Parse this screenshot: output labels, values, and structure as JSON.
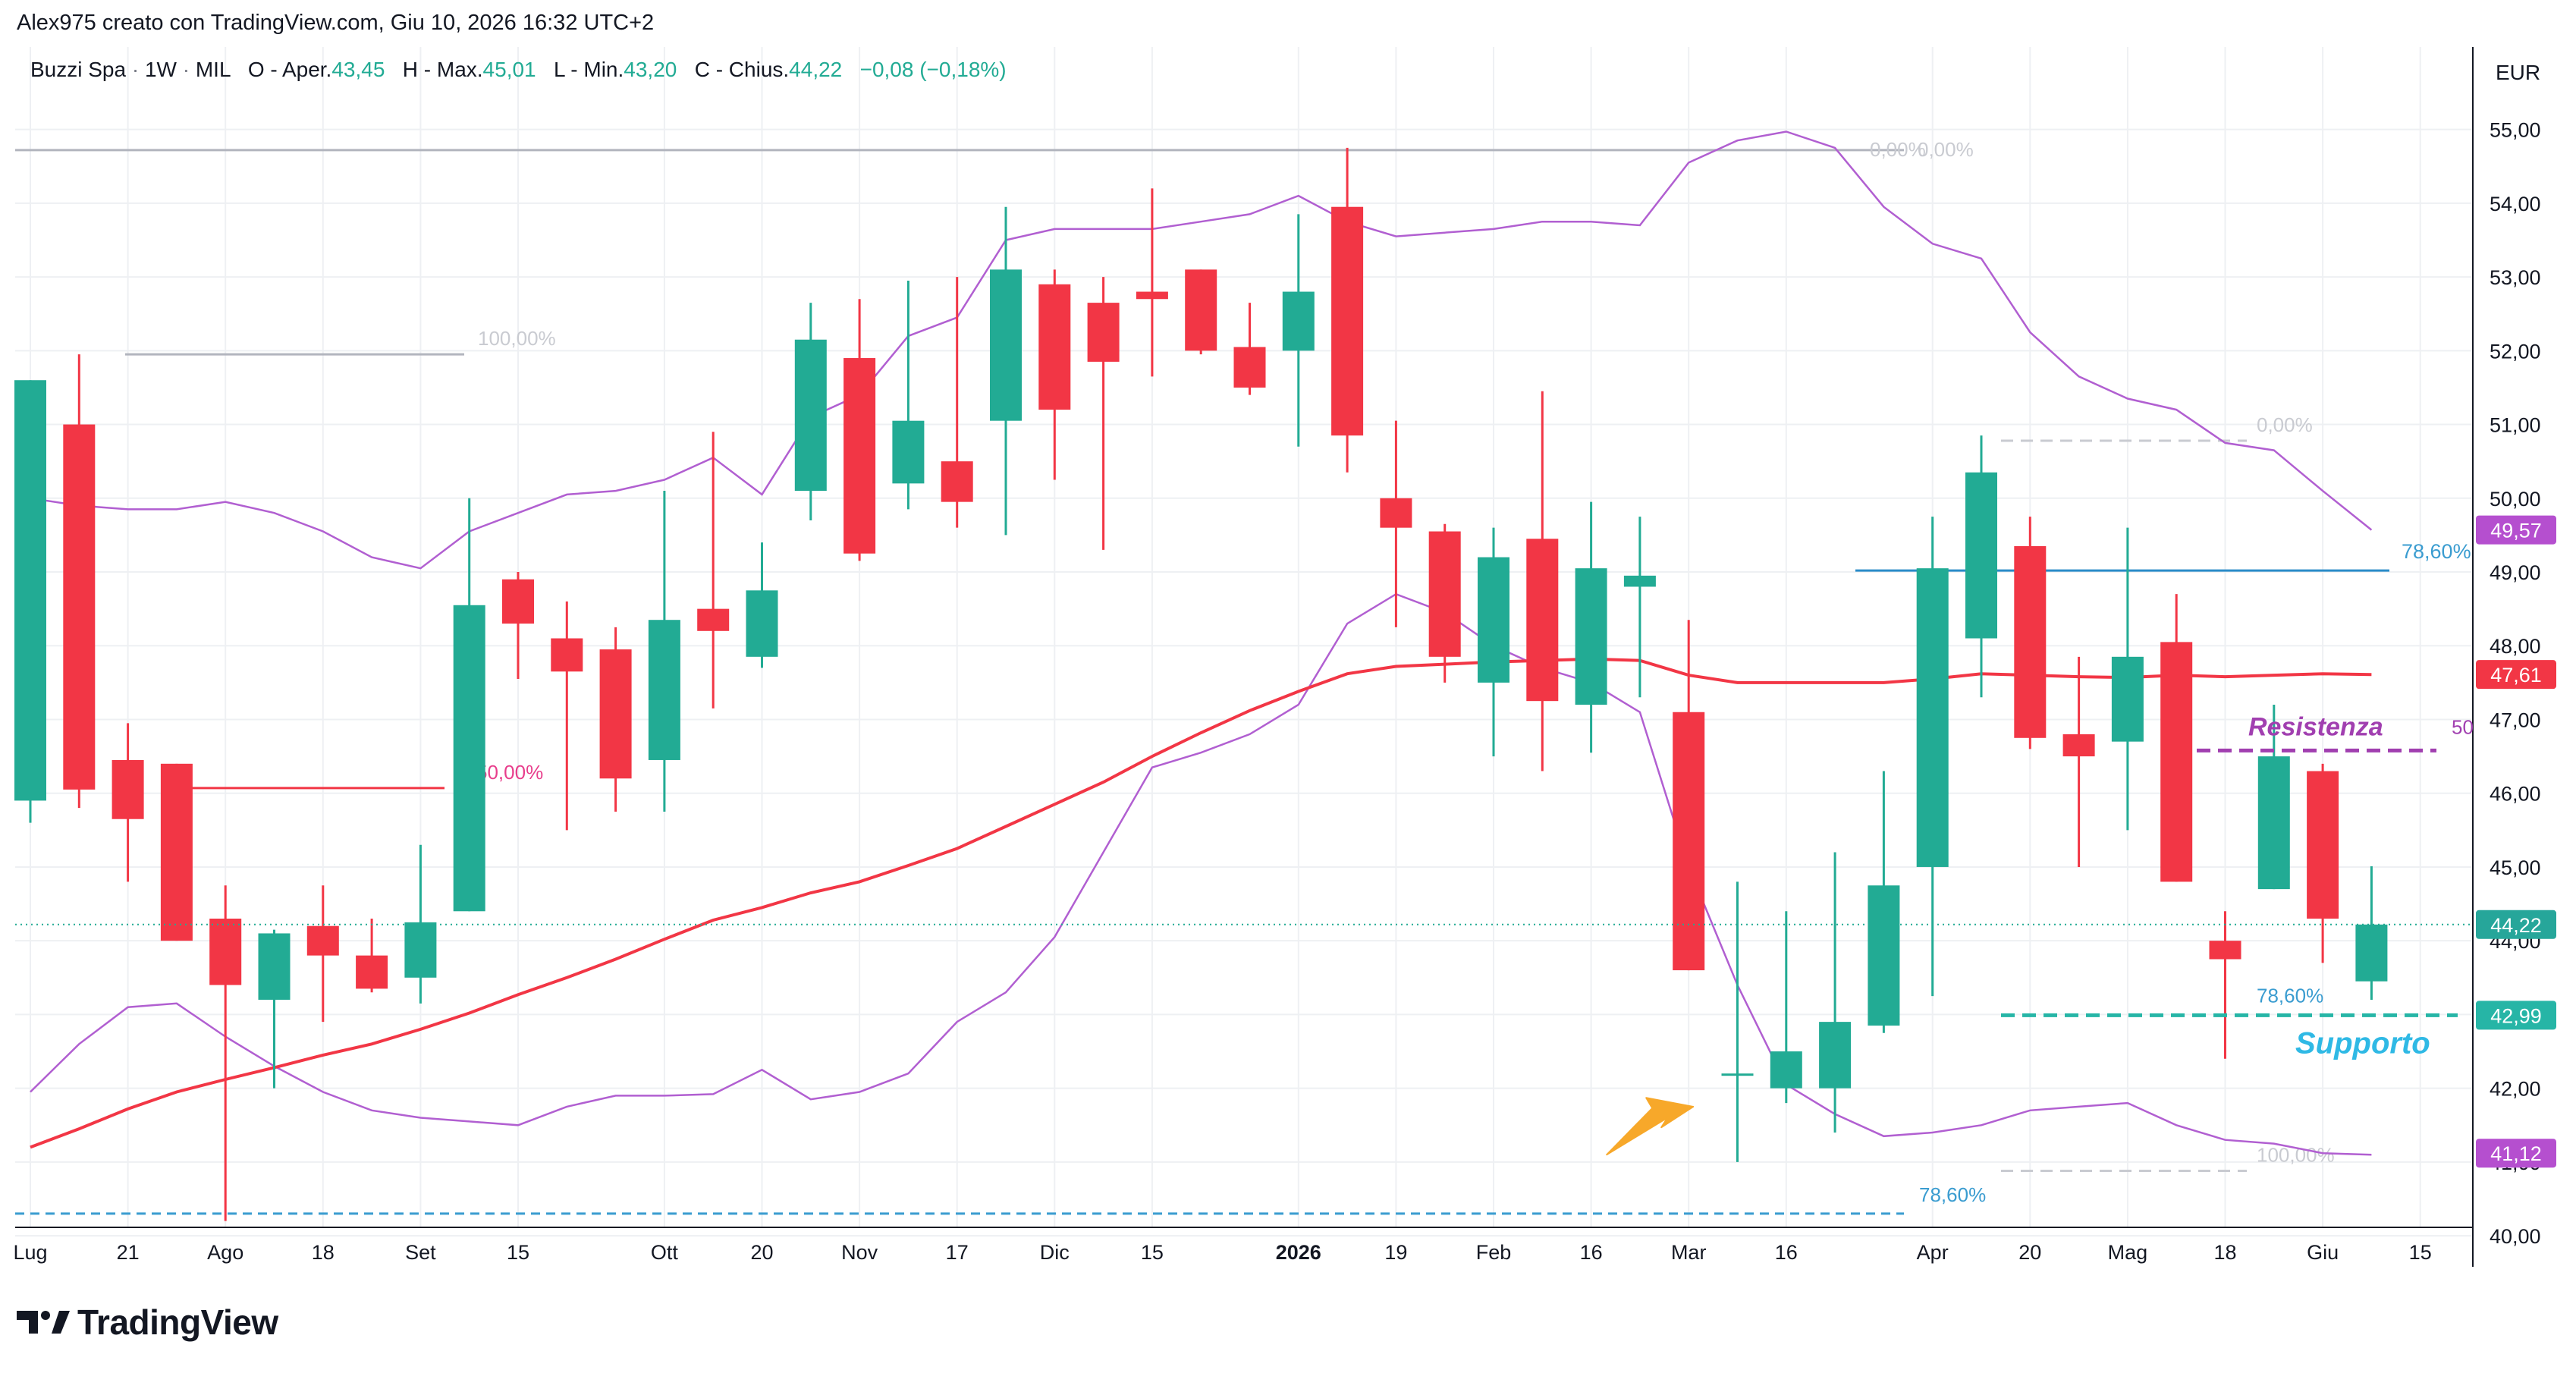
{
  "header": {
    "attribution": "Alex975 creato con TradingView.com, Giu 10, 2026 16:32 UTC+2"
  },
  "legend": {
    "symbol": "Buzzi Spa",
    "interval": "1W",
    "exchange": "MIL",
    "open_label": "O - Aper.",
    "open_value": "43,45",
    "high_label": "H - Max.",
    "high_value": "45,01",
    "low_label": "L - Min.",
    "low_value": "43,20",
    "close_label": "C - Chius.",
    "close_value": "44,22",
    "change": "−0,08 (−0,18%)"
  },
  "currency": "EUR",
  "footer": {
    "brand": "TradingView"
  },
  "colors": {
    "up": "#22ab94",
    "down": "#f23645",
    "ma": "#f23645",
    "bollinger": "#b15fd1",
    "grid": "#eef0f3",
    "fib_blue": "#3a9cd0",
    "support": "#26b5a6",
    "resistance": "#a13fb0"
  },
  "chart_data": {
    "type": "candlestick",
    "ylim": [
      39.6,
      55.5
    ],
    "y_ticks": [
      "40,00",
      "41,00",
      "42,00",
      "43,00",
      "44,00",
      "45,00",
      "46,00",
      "47,00",
      "48,00",
      "49,00",
      "50,00",
      "51,00",
      "52,00",
      "53,00",
      "54,00",
      "55,00"
    ],
    "x_ticks": [
      {
        "i": 0,
        "label": "Lug"
      },
      {
        "i": 2,
        "label": "21"
      },
      {
        "i": 4,
        "label": "Ago"
      },
      {
        "i": 6,
        "label": "18"
      },
      {
        "i": 8,
        "label": "Set"
      },
      {
        "i": 10,
        "label": "15"
      },
      {
        "i": 13,
        "label": "Ott"
      },
      {
        "i": 15,
        "label": "20"
      },
      {
        "i": 17,
        "label": "Nov"
      },
      {
        "i": 19,
        "label": "17"
      },
      {
        "i": 21,
        "label": "Dic"
      },
      {
        "i": 23,
        "label": "15"
      },
      {
        "i": 26,
        "label": "2026"
      },
      {
        "i": 28,
        "label": "19"
      },
      {
        "i": 30,
        "label": "Feb"
      },
      {
        "i": 32,
        "label": "16"
      },
      {
        "i": 34,
        "label": "Mar"
      },
      {
        "i": 36,
        "label": "16"
      },
      {
        "i": 39,
        "label": "Apr"
      },
      {
        "i": 41,
        "label": "20"
      },
      {
        "i": 43,
        "label": "Mag"
      },
      {
        "i": 45,
        "label": "18"
      },
      {
        "i": 47,
        "label": "Giu"
      },
      {
        "i": 49,
        "label": "15"
      }
    ],
    "candles": [
      {
        "o": 45.9,
        "h": 51.6,
        "l": 45.6,
        "c": 51.6
      },
      {
        "o": 51.0,
        "h": 51.95,
        "l": 45.8,
        "c": 46.05
      },
      {
        "o": 46.45,
        "h": 46.95,
        "l": 44.8,
        "c": 45.65
      },
      {
        "o": 46.4,
        "h": 46.4,
        "l": 44.0,
        "c": 44.0
      },
      {
        "o": 44.3,
        "h": 44.75,
        "l": 40.2,
        "c": 43.4
      },
      {
        "o": 43.2,
        "h": 44.15,
        "l": 42.0,
        "c": 44.1
      },
      {
        "o": 44.2,
        "h": 44.75,
        "l": 42.9,
        "c": 43.8
      },
      {
        "o": 43.8,
        "h": 44.3,
        "l": 43.3,
        "c": 43.35
      },
      {
        "o": 43.5,
        "h": 45.3,
        "l": 43.15,
        "c": 44.25
      },
      {
        "o": 44.4,
        "h": 50.0,
        "l": 44.4,
        "c": 48.55
      },
      {
        "o": 48.9,
        "h": 49.0,
        "l": 47.55,
        "c": 48.3
      },
      {
        "o": 48.1,
        "h": 48.6,
        "l": 45.5,
        "c": 47.65
      },
      {
        "o": 47.95,
        "h": 48.25,
        "l": 45.75,
        "c": 46.2
      },
      {
        "o": 46.45,
        "h": 50.1,
        "l": 45.75,
        "c": 48.35
      },
      {
        "o": 48.5,
        "h": 50.9,
        "l": 47.15,
        "c": 48.2
      },
      {
        "o": 47.85,
        "h": 49.4,
        "l": 47.7,
        "c": 48.75
      },
      {
        "o": 50.1,
        "h": 52.65,
        "l": 49.7,
        "c": 52.15
      },
      {
        "o": 51.9,
        "h": 52.7,
        "l": 49.15,
        "c": 49.25
      },
      {
        "o": 50.2,
        "h": 52.95,
        "l": 49.85,
        "c": 51.05
      },
      {
        "o": 50.5,
        "h": 53.0,
        "l": 49.6,
        "c": 49.95
      },
      {
        "o": 51.05,
        "h": 53.95,
        "l": 49.5,
        "c": 53.1
      },
      {
        "o": 52.9,
        "h": 53.1,
        "l": 50.25,
        "c": 51.2
      },
      {
        "o": 52.65,
        "h": 53.0,
        "l": 49.3,
        "c": 51.85
      },
      {
        "o": 52.8,
        "h": 54.2,
        "l": 51.65,
        "c": 52.7
      },
      {
        "o": 53.1,
        "h": 53.1,
        "l": 51.95,
        "c": 52.0
      },
      {
        "o": 52.05,
        "h": 52.65,
        "l": 51.4,
        "c": 51.5
      },
      {
        "o": 52.0,
        "h": 53.85,
        "l": 50.7,
        "c": 52.8
      },
      {
        "o": 53.95,
        "h": 54.75,
        "l": 50.35,
        "c": 50.85
      },
      {
        "o": 50.0,
        "h": 51.05,
        "l": 48.25,
        "c": 49.6
      },
      {
        "o": 49.55,
        "h": 49.65,
        "l": 47.5,
        "c": 47.85
      },
      {
        "o": 47.5,
        "h": 49.6,
        "l": 46.5,
        "c": 49.2
      },
      {
        "o": 49.45,
        "h": 51.45,
        "l": 46.3,
        "c": 47.25
      },
      {
        "o": 47.2,
        "h": 49.95,
        "l": 46.55,
        "c": 49.05
      },
      {
        "o": 48.8,
        "h": 49.75,
        "l": 47.3,
        "c": 48.95
      },
      {
        "o": 47.1,
        "h": 48.35,
        "l": 43.6,
        "c": 43.6
      },
      {
        "o": 42.2,
        "h": 44.8,
        "l": 41.0,
        "c": 42.2
      },
      {
        "o": 42.0,
        "h": 44.4,
        "l": 41.8,
        "c": 42.5
      },
      {
        "o": 42.0,
        "h": 45.2,
        "l": 41.4,
        "c": 42.9
      },
      {
        "o": 42.85,
        "h": 46.3,
        "l": 42.75,
        "c": 44.75
      },
      {
        "o": 45.0,
        "h": 49.75,
        "l": 43.25,
        "c": 49.05
      },
      {
        "o": 48.1,
        "h": 50.85,
        "l": 47.3,
        "c": 50.35
      },
      {
        "o": 49.35,
        "h": 49.75,
        "l": 46.6,
        "c": 46.75
      },
      {
        "o": 46.8,
        "h": 47.85,
        "l": 45.0,
        "c": 46.5
      },
      {
        "o": 46.7,
        "h": 49.6,
        "l": 45.5,
        "c": 47.85
      },
      {
        "o": 48.05,
        "h": 48.7,
        "l": 44.8,
        "c": 44.8
      },
      {
        "o": 44.0,
        "h": 44.4,
        "l": 42.4,
        "c": 43.75
      },
      {
        "o": 44.7,
        "h": 47.2,
        "l": 44.7,
        "c": 46.5
      },
      {
        "o": 46.3,
        "h": 46.4,
        "l": 43.7,
        "c": 44.3
      },
      {
        "o": 43.45,
        "h": 45.01,
        "l": 43.2,
        "c": 44.22
      }
    ],
    "ma": [
      41.2,
      41.45,
      41.72,
      41.95,
      42.12,
      42.28,
      42.45,
      42.6,
      42.8,
      43.02,
      43.27,
      43.5,
      43.75,
      44.02,
      44.28,
      44.45,
      44.65,
      44.8,
      45.02,
      45.25,
      45.55,
      45.85,
      46.15,
      46.5,
      46.82,
      47.12,
      47.38,
      47.62,
      47.72,
      47.75,
      47.78,
      47.8,
      47.82,
      47.8,
      47.6,
      47.5,
      47.5,
      47.5,
      47.5,
      47.55,
      47.62,
      47.6,
      47.58,
      47.57,
      47.6,
      47.58,
      47.6,
      47.62,
      47.61
    ],
    "bb_upper": [
      50.0,
      49.9,
      49.85,
      49.85,
      49.95,
      49.8,
      49.55,
      49.2,
      49.05,
      49.55,
      49.8,
      50.05,
      50.1,
      50.25,
      50.55,
      50.05,
      51.1,
      51.4,
      52.2,
      52.45,
      53.5,
      53.65,
      53.65,
      53.65,
      53.75,
      53.85,
      54.1,
      53.75,
      53.55,
      53.6,
      53.65,
      53.75,
      53.75,
      53.7,
      54.55,
      54.85,
      54.97,
      54.75,
      53.95,
      53.45,
      53.25,
      52.25,
      51.65,
      51.35,
      51.2,
      50.75,
      50.65,
      50.1,
      49.57
    ],
    "bb_lower": [
      41.95,
      42.6,
      43.1,
      43.15,
      42.7,
      42.3,
      41.95,
      41.7,
      41.6,
      41.55,
      41.5,
      41.75,
      41.9,
      41.9,
      41.92,
      42.25,
      41.85,
      41.95,
      42.2,
      42.9,
      43.3,
      44.05,
      45.2,
      46.35,
      46.55,
      46.8,
      47.2,
      48.3,
      48.7,
      48.45,
      48.0,
      47.7,
      47.5,
      47.1,
      45.0,
      43.4,
      42.05,
      41.65,
      41.35,
      41.4,
      41.5,
      41.7,
      41.75,
      41.8,
      41.5,
      41.3,
      41.25,
      41.12,
      41.1
    ],
    "price_labels": [
      {
        "value": 49.57,
        "text": "49,57",
        "kind": "bollinger"
      },
      {
        "value": 47.61,
        "text": "47,61",
        "kind": "ma"
      },
      {
        "value": 44.22,
        "text": "44,22",
        "kind": "last"
      },
      {
        "value": 42.99,
        "text": "42,99",
        "kind": "support"
      },
      {
        "value": 41.12,
        "text": "41,12",
        "kind": "bollinger"
      }
    ],
    "annotations": {
      "fib_1": {
        "top": 54.72,
        "bottom": 40.3,
        "label_top_a": "0,00%",
        "label_top_b": "0,00%",
        "label_100": "100,00%",
        "label_50": "50,00%",
        "label_786": "78,60%",
        "level_100": 51.95,
        "level_50": 46.07,
        "level_786": 40.3
      },
      "fib_2": {
        "top": 50.78,
        "bottom": 40.88,
        "label_0": "0,00%",
        "label_100": "100,00%",
        "label_786": "78,60%",
        "level_786": 43.0
      },
      "blue_line": {
        "value": 49.02,
        "label": "78,60%"
      },
      "resistance": {
        "value": 46.58,
        "label": "Resistenza",
        "suffix": "50"
      },
      "support": {
        "value": 42.99,
        "label": "Supporto"
      },
      "arrow_at": 34
    }
  }
}
